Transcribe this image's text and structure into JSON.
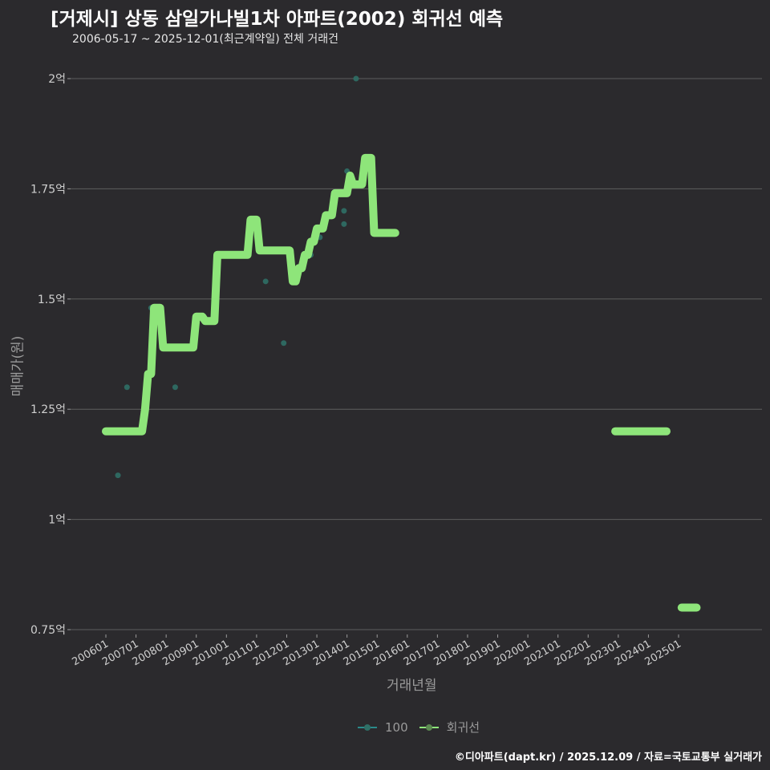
{
  "header": {
    "title": "[거제시] 상동 삼일가나빌1차 아파트(2002) 회귀선 예측",
    "subtitle": "2006-05-17 ~ 2025-12-01(최근계약일) 전체 거래건"
  },
  "footer": {
    "credit": "©디아파트(dapt.kr) / 2025.12.09 / 자료=국토교통부 실거래가"
  },
  "colors": {
    "background": "#2b2a2d",
    "regression": "#8ee57a",
    "scatter": "#2f6f66",
    "grid": "#5e5e5e"
  },
  "chart_data": {
    "type": "line",
    "title": "[거제시] 상동 삼일가나빌1차 아파트(2002) 회귀선 예측",
    "subtitle": "2006-05-17 ~ 2025-12-01(최근계약일) 전체 거래건",
    "xlabel": "거래년월",
    "ylabel": "매매가(원)",
    "ylim": [
      0.75,
      2.0
    ],
    "y_unit": "억",
    "yticks": [
      0.75,
      1,
      1.25,
      1.5,
      1.75,
      2
    ],
    "ytick_labels": [
      "0.75억",
      "1억",
      "1.25억",
      "1.5억",
      "1.75억",
      "2억"
    ],
    "xtick_labels": [
      "200601",
      "200701",
      "200801",
      "200901",
      "201001",
      "201101",
      "201201",
      "201301",
      "201401",
      "201501",
      "201601",
      "201701",
      "201801",
      "201901",
      "202001",
      "202101",
      "202201",
      "202301",
      "202401",
      "202501"
    ],
    "grid": true,
    "legend": {
      "position": "bottom",
      "entries": [
        "100",
        "회귀선"
      ]
    },
    "series": [
      {
        "name": "100",
        "kind": "scatter",
        "points": [
          [
            2006.4,
            1.1
          ],
          [
            2006.7,
            1.3
          ],
          [
            2007.5,
            1.48
          ],
          [
            2008.3,
            1.3
          ],
          [
            2011.0,
            1.68
          ],
          [
            2011.3,
            1.54
          ],
          [
            2011.9,
            1.4
          ],
          [
            2012.2,
            1.56
          ],
          [
            2012.8,
            1.6
          ],
          [
            2013.1,
            1.64
          ],
          [
            2013.2,
            1.66
          ],
          [
            2013.9,
            1.67
          ],
          [
            2013.9,
            1.7
          ],
          [
            2014.0,
            1.79
          ],
          [
            2014.3,
            2.0
          ],
          [
            2014.9,
            1.65
          ]
        ]
      },
      {
        "name": "회귀선",
        "kind": "line",
        "segments": [
          [
            [
              2006.0,
              1.2
            ],
            [
              2007.2,
              1.2
            ],
            [
              2007.3,
              1.25
            ],
            [
              2007.4,
              1.33
            ],
            [
              2007.5,
              1.33
            ],
            [
              2007.6,
              1.48
            ],
            [
              2007.8,
              1.48
            ],
            [
              2007.9,
              1.39
            ],
            [
              2008.9,
              1.39
            ],
            [
              2009.0,
              1.46
            ],
            [
              2009.2,
              1.46
            ],
            [
              2009.3,
              1.45
            ],
            [
              2009.6,
              1.45
            ],
            [
              2009.7,
              1.6
            ],
            [
              2010.7,
              1.6
            ],
            [
              2010.8,
              1.68
            ],
            [
              2011.0,
              1.68
            ],
            [
              2011.1,
              1.61
            ],
            [
              2012.1,
              1.61
            ],
            [
              2012.2,
              1.54
            ],
            [
              2012.3,
              1.54
            ],
            [
              2012.4,
              1.57
            ],
            [
              2012.5,
              1.57
            ],
            [
              2012.6,
              1.6
            ],
            [
              2012.7,
              1.6
            ],
            [
              2012.8,
              1.63
            ],
            [
              2012.9,
              1.63
            ],
            [
              2013.0,
              1.66
            ],
            [
              2013.2,
              1.66
            ],
            [
              2013.3,
              1.69
            ],
            [
              2013.5,
              1.69
            ],
            [
              2013.6,
              1.74
            ],
            [
              2014.0,
              1.74
            ],
            [
              2014.1,
              1.78
            ],
            [
              2014.2,
              1.76
            ],
            [
              2014.5,
              1.76
            ],
            [
              2014.6,
              1.82
            ],
            [
              2014.8,
              1.82
            ],
            [
              2014.9,
              1.65
            ],
            [
              2015.6,
              1.65
            ]
          ],
          [
            [
              2022.9,
              1.2
            ],
            [
              2024.6,
              1.2
            ]
          ],
          [
            [
              2025.1,
              0.8
            ],
            [
              2025.6,
              0.8
            ]
          ]
        ]
      }
    ]
  }
}
